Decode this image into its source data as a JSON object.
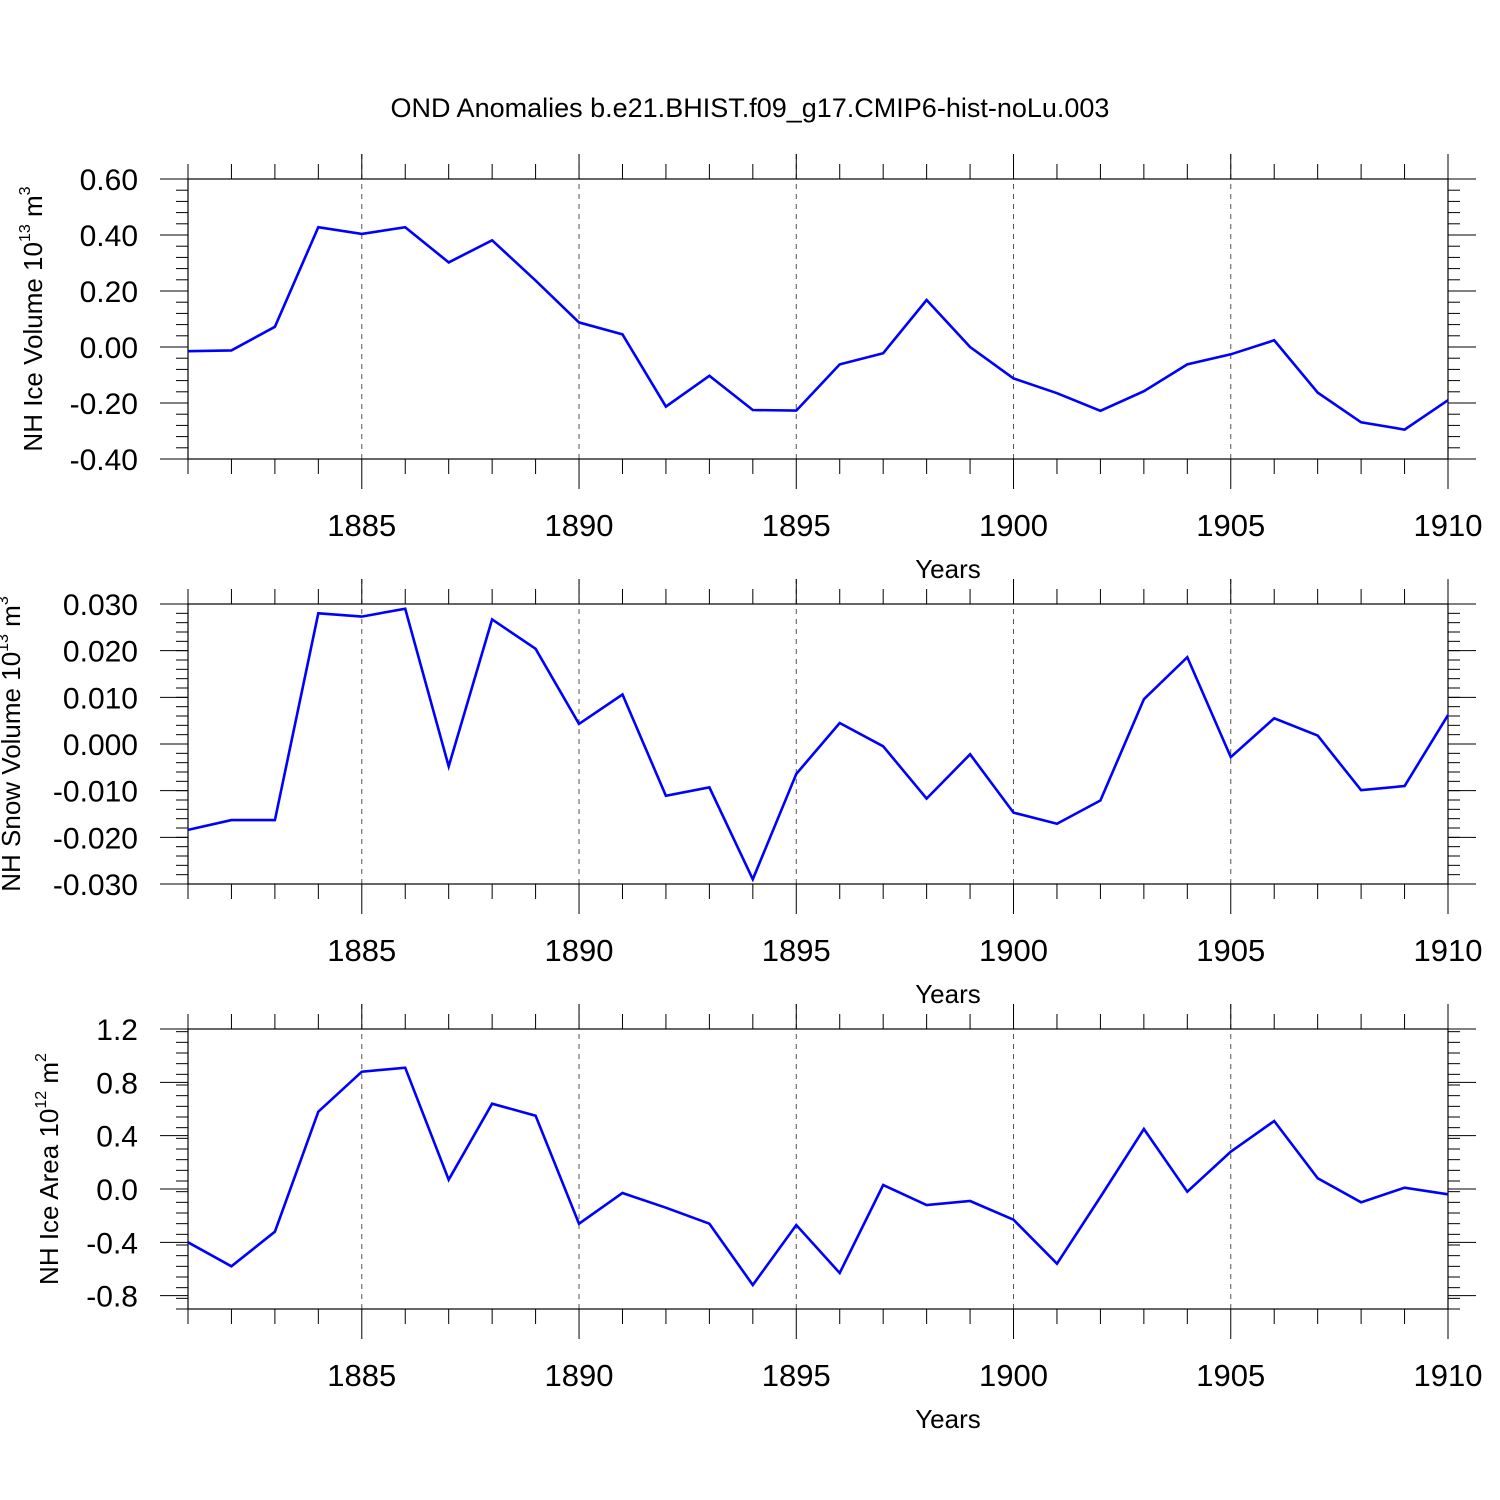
{
  "figure": {
    "title": "OND Anomalies b.e21.BHIST.f09_g17.CMIP6-hist-noLu.003"
  },
  "colors": {
    "line": "#0000ff",
    "axis": "#000000",
    "grid": "#555555"
  },
  "chart_data": [
    {
      "type": "line",
      "ylabel_main": "NH Ice Volume 10",
      "ylabel_exp": "13",
      "ylabel_unit": " m",
      "ylabel_unit_exp": "3",
      "xlabel": "Years",
      "xlim": [
        1881,
        1910
      ],
      "ylim": [
        -0.4,
        0.6
      ],
      "yticks": [
        -0.4,
        -0.2,
        0.0,
        0.2,
        0.4,
        0.6
      ],
      "ytick_labels": [
        "-0.40",
        "-0.20",
        "0.00",
        "0.20",
        "0.40",
        "0.60"
      ],
      "xticks": [
        1885,
        1890,
        1895,
        1900,
        1905,
        1910
      ],
      "xtick_labels": [
        "1885",
        "1890",
        "1895",
        "1900",
        "1905",
        "1910"
      ],
      "grid": "vertical dashed at labeled years",
      "x": [
        1881,
        1882,
        1883,
        1884,
        1885,
        1886,
        1887,
        1888,
        1889,
        1890,
        1891,
        1892,
        1893,
        1894,
        1895,
        1896,
        1897,
        1898,
        1899,
        1900,
        1901,
        1902,
        1903,
        1904,
        1905,
        1906,
        1907,
        1908,
        1909,
        1910
      ],
      "values": [
        -0.015,
        -0.012,
        0.072,
        0.428,
        0.404,
        0.428,
        0.302,
        0.381,
        0.237,
        0.088,
        0.045,
        -0.213,
        -0.103,
        -0.225,
        -0.227,
        -0.062,
        -0.022,
        0.168,
        0.0,
        -0.112,
        -0.165,
        -0.228,
        -0.158,
        -0.062,
        -0.026,
        0.024,
        -0.163,
        -0.269,
        -0.295,
        -0.19
      ]
    },
    {
      "type": "line",
      "ylabel_main": "NH Snow Volume 10",
      "ylabel_exp": "13",
      "ylabel_unit": " m",
      "ylabel_unit_exp": "3",
      "xlabel": "Years",
      "xlim": [
        1881,
        1910
      ],
      "ylim": [
        -0.03,
        0.03
      ],
      "yticks": [
        -0.03,
        -0.02,
        -0.01,
        0.0,
        0.01,
        0.02,
        0.03
      ],
      "ytick_labels": [
        "-0.030",
        "-0.020",
        "-0.010",
        "0.000",
        "0.010",
        "0.020",
        "0.030"
      ],
      "xticks": [
        1885,
        1890,
        1895,
        1900,
        1905,
        1910
      ],
      "xtick_labels": [
        "1885",
        "1890",
        "1895",
        "1900",
        "1905",
        "1910"
      ],
      "grid": "vertical dashed at labeled years",
      "x": [
        1881,
        1882,
        1883,
        1884,
        1885,
        1886,
        1887,
        1888,
        1889,
        1890,
        1891,
        1892,
        1893,
        1894,
        1895,
        1896,
        1897,
        1898,
        1899,
        1900,
        1901,
        1902,
        1903,
        1904,
        1905,
        1906,
        1907,
        1908,
        1909,
        1910
      ],
      "values": [
        -0.0184,
        -0.0163,
        -0.0163,
        0.028,
        0.0273,
        0.029,
        -0.0048,
        0.0267,
        0.0204,
        0.0043,
        0.0106,
        -0.0111,
        -0.0093,
        -0.029,
        -0.0064,
        0.0045,
        -0.0005,
        -0.0117,
        -0.0022,
        -0.0147,
        -0.0171,
        -0.0121,
        0.0096,
        0.0186,
        -0.0028,
        0.0055,
        0.0018,
        -0.0099,
        -0.009,
        0.0062
      ]
    },
    {
      "type": "line",
      "ylabel_main": "NH Ice Area 10",
      "ylabel_exp": "12",
      "ylabel_unit": " m",
      "ylabel_unit_exp": "2",
      "xlabel": "Years",
      "xlim": [
        1881,
        1910
      ],
      "ylim": [
        -0.9,
        1.2
      ],
      "yticks": [
        -0.8,
        -0.4,
        0.0,
        0.4,
        0.8,
        1.2
      ],
      "ytick_labels": [
        "-0.8",
        "-0.4",
        "0.0",
        "0.4",
        "0.8",
        "1.2"
      ],
      "xticks": [
        1885,
        1890,
        1895,
        1900,
        1905,
        1910
      ],
      "xtick_labels": [
        "1885",
        "1890",
        "1895",
        "1900",
        "1905",
        "1910"
      ],
      "grid": "vertical dashed at labeled years",
      "x": [
        1881,
        1882,
        1883,
        1884,
        1885,
        1886,
        1887,
        1888,
        1889,
        1890,
        1891,
        1892,
        1893,
        1894,
        1895,
        1896,
        1897,
        1898,
        1899,
        1900,
        1901,
        1902,
        1903,
        1904,
        1905,
        1906,
        1907,
        1908,
        1909,
        1910
      ],
      "values": [
        -0.4,
        -0.58,
        -0.32,
        0.58,
        0.88,
        0.91,
        0.07,
        0.64,
        0.55,
        -0.26,
        -0.03,
        -0.14,
        -0.26,
        -0.72,
        -0.27,
        -0.63,
        0.03,
        -0.12,
        -0.09,
        -0.23,
        -0.56,
        -0.06,
        0.45,
        -0.02,
        0.28,
        0.51,
        0.08,
        -0.1,
        0.01,
        -0.04
      ]
    }
  ]
}
